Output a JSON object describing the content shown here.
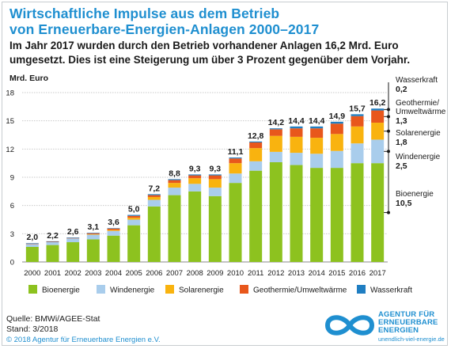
{
  "header": {
    "title_line1": "Wirtschaftliche Impulse aus dem Betrieb",
    "title_line2": "von Erneuerbare-Energien-Anlagen 2000–2017",
    "subtitle_line1": "Im Jahr 2017 wurden durch den Betrieb vorhandener Anlagen 16,2 Mrd. Euro",
    "subtitle_line2": "umgesetzt. Dies ist eine Steigerung um über 3 Prozent gegenüber dem Vorjahr."
  },
  "chart_data": {
    "type": "bar",
    "stacked": true,
    "ylabel": "Mrd. Euro",
    "ylim": [
      0,
      18
    ],
    "yticks": [
      0,
      3,
      6,
      9,
      12,
      15,
      18
    ],
    "grid": true,
    "legend_position": "bottom",
    "categories": [
      "2000",
      "2001",
      "2002",
      "2003",
      "2004",
      "2005",
      "2006",
      "2007",
      "2008",
      "2009",
      "2010",
      "2011",
      "2012",
      "2013",
      "2014",
      "2015",
      "2016",
      "2017"
    ],
    "totals": [
      "2,0",
      "2,2",
      "2,6",
      "3,1",
      "3,6",
      "5,0",
      "7,2",
      "8,8",
      "9,3",
      "9,3",
      "11,1",
      "12,8",
      "14,2",
      "14,4",
      "14,4",
      "14,9",
      "15,7",
      "16,2"
    ],
    "series": [
      {
        "name": "Bioenergie",
        "color": "#8dc21f",
        "values": [
          1.6,
          1.8,
          2.1,
          2.4,
          2.8,
          3.9,
          5.9,
          7.1,
          7.5,
          7.0,
          8.4,
          9.7,
          10.6,
          10.3,
          10.0,
          10.0,
          10.5,
          10.5
        ]
      },
      {
        "name": "Windenergie",
        "color": "#a9cdec",
        "values": [
          0.3,
          0.3,
          0.4,
          0.5,
          0.5,
          0.6,
          0.7,
          0.8,
          0.8,
          0.9,
          1.0,
          1.0,
          1.1,
          1.3,
          1.5,
          1.8,
          2.1,
          2.5
        ]
      },
      {
        "name": "Solarenergie",
        "color": "#f9b30f",
        "values": [
          0.0,
          0.0,
          0.0,
          0.05,
          0.1,
          0.2,
          0.3,
          0.5,
          0.6,
          0.9,
          1.1,
          1.4,
          1.7,
          1.7,
          1.7,
          1.8,
          1.8,
          1.8
        ]
      },
      {
        "name": "Geothermie/Umweltwärme",
        "color": "#e8571c",
        "values": [
          0.05,
          0.05,
          0.05,
          0.1,
          0.15,
          0.2,
          0.2,
          0.3,
          0.3,
          0.4,
          0.5,
          0.6,
          0.7,
          0.9,
          1.0,
          1.1,
          1.1,
          1.3
        ]
      },
      {
        "name": "Wasserkraft",
        "color": "#1f7ec2",
        "values": [
          0.05,
          0.05,
          0.05,
          0.05,
          0.05,
          0.1,
          0.1,
          0.1,
          0.1,
          0.1,
          0.1,
          0.1,
          0.1,
          0.2,
          0.2,
          0.2,
          0.2,
          0.2
        ]
      }
    ],
    "annotations": [
      {
        "label": "Wasserkraft",
        "value": "0,2"
      },
      {
        "label": "Geothermie/ Umweltwärme",
        "value": "1,3"
      },
      {
        "label": "Solarenergie",
        "value": "1,8"
      },
      {
        "label": "Windenergie",
        "value": "2,5"
      },
      {
        "label": "Bioenergie",
        "value": "10,5"
      }
    ]
  },
  "footer": {
    "source": "Quelle: BMWi/AGEE-Stat",
    "stand": "Stand: 3/2018",
    "copyright": "© 2018 Agentur für Erneuerbare Energien e.V."
  },
  "logo": {
    "line1": "AGENTUR FÜR",
    "line2": "ERNEUERBARE",
    "line3": "ENERGIEN",
    "url": "unendlich-viel-energie.de",
    "color": "#1f8fd0"
  }
}
